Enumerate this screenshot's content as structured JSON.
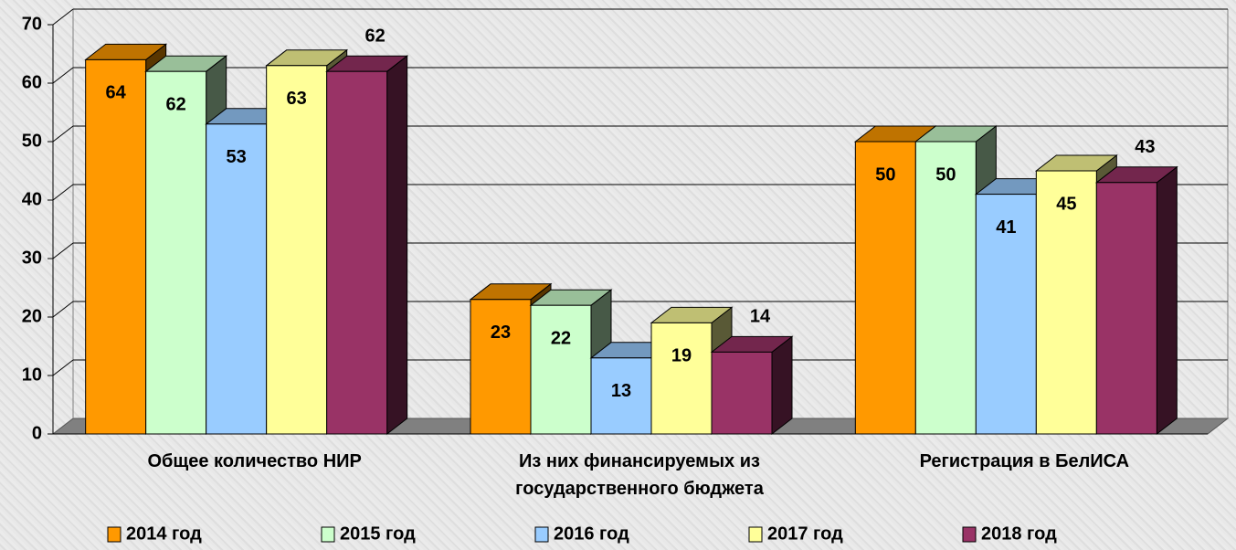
{
  "chart_data": {
    "type": "bar3d",
    "categories": [
      "Общее количество НИР",
      "Из них финансируемых из государственного бюджета",
      "Регистрация в БелИСА"
    ],
    "series": [
      {
        "name": "2014 год",
        "color": "#ff9900",
        "values": [
          64,
          23,
          50
        ]
      },
      {
        "name": "2015 год",
        "color": "#ccffcc",
        "values": [
          62,
          22,
          50
        ]
      },
      {
        "name": "2016 год",
        "color": "#99ccff",
        "values": [
          53,
          13,
          41
        ]
      },
      {
        "name": "2017 год",
        "color": "#ffff99",
        "values": [
          63,
          19,
          45
        ]
      },
      {
        "name": "2018 год",
        "color": "#993366",
        "values": [
          62,
          14,
          43
        ]
      }
    ],
    "ylim": [
      0,
      70
    ],
    "yticks": [
      0,
      10,
      20,
      30,
      40,
      50,
      60,
      70
    ],
    "grid": true,
    "legend": "bottom"
  }
}
